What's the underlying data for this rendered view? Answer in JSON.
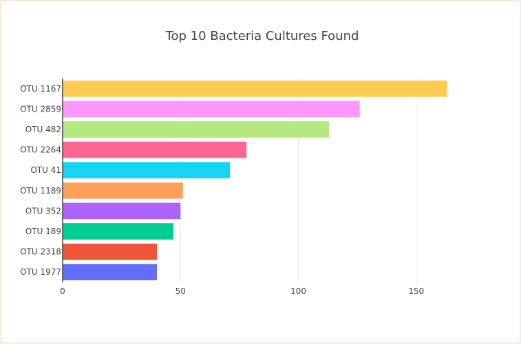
{
  "chart_data": {
    "type": "bar",
    "orientation": "horizontal",
    "title": "Top 10 Bacteria Cultures Found",
    "categories": [
      "OTU 1167",
      "OTU 2859",
      "OTU 482",
      "OTU 2264",
      "OTU 41",
      "OTU 1189",
      "OTU 352",
      "OTU 189",
      "OTU 2318",
      "OTU 1977"
    ],
    "values": [
      163,
      126,
      113,
      78,
      71,
      51,
      50,
      47,
      40,
      40
    ],
    "colors": [
      "#FECB52",
      "#FF97FF",
      "#B6E880",
      "#FF6692",
      "#19D3F3",
      "#FFA15A",
      "#AB63FA",
      "#00CC96",
      "#EF553B",
      "#636EFA"
    ],
    "xlim": [
      0,
      195
    ],
    "xticks": [
      0,
      50,
      100,
      150
    ],
    "grid": true,
    "legend": "none"
  }
}
